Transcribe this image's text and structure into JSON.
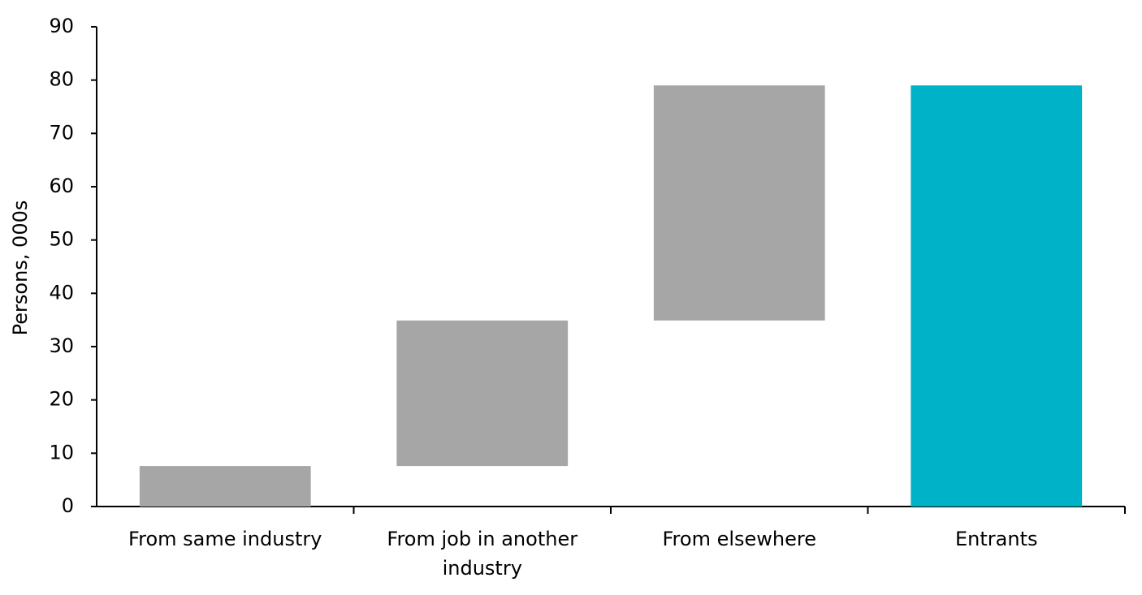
{
  "chart_data": {
    "type": "waterfall",
    "y_label": "Persons, 000s",
    "categories": [
      "From same industry",
      "From job in another industry",
      "From elsewhere",
      "Entrants"
    ],
    "values": [
      7.6,
      27.3,
      44.1,
      79.0
    ],
    "is_total": [
      false,
      false,
      false,
      true
    ],
    "colors": [
      "#a6a6a6",
      "#a6a6a6",
      "#a6a6a6",
      "#00b2c8"
    ],
    "ylim": [
      0,
      90
    ],
    "yticks": [
      0,
      10,
      20,
      30,
      40,
      50,
      60,
      70,
      80,
      90
    ],
    "grid": false
  }
}
